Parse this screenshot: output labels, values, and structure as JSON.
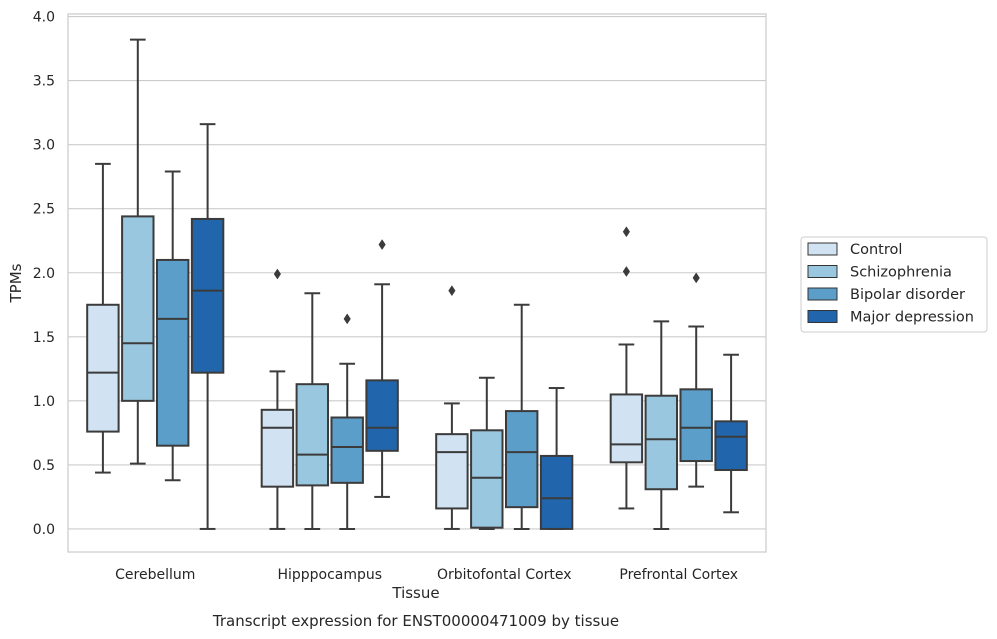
{
  "chart_data": {
    "type": "box",
    "title": "",
    "caption": "Transcript expression for ENST00000471009 by tissue",
    "xlabel": "Tissue",
    "ylabel": "TPMs",
    "ylim": [
      -0.18,
      4.02
    ],
    "yticks": [
      "0.0",
      "0.5",
      "1.0",
      "1.5",
      "2.0",
      "2.5",
      "3.0",
      "3.5",
      "4.0"
    ],
    "grid": "horizontal",
    "legend_position": "right",
    "categories": [
      "Cerebellum",
      "Hipppocampus",
      "Orbitofontal Cortex",
      "Prefrontal Cortex"
    ],
    "series": [
      {
        "name": "Control",
        "color": "#d1e2f2",
        "boxes": [
          {
            "min": 0.44,
            "q1": 0.76,
            "median": 1.22,
            "q3": 1.75,
            "max": 2.85,
            "outliers": []
          },
          {
            "min": 0.0,
            "q1": 0.33,
            "median": 0.79,
            "q3": 0.93,
            "max": 1.23,
            "outliers": [
              1.99
            ]
          },
          {
            "min": 0.0,
            "q1": 0.16,
            "median": 0.6,
            "q3": 0.74,
            "max": 0.98,
            "outliers": [
              1.86
            ]
          },
          {
            "min": 0.16,
            "q1": 0.52,
            "median": 0.66,
            "q3": 1.05,
            "max": 1.44,
            "outliers": [
              2.01,
              2.32
            ]
          }
        ]
      },
      {
        "name": "Schizophrenia",
        "color": "#9ac7e0",
        "boxes": [
          {
            "min": 0.51,
            "q1": 1.0,
            "median": 1.45,
            "q3": 2.44,
            "max": 3.82,
            "outliers": []
          },
          {
            "min": 0.0,
            "q1": 0.34,
            "median": 0.58,
            "q3": 1.13,
            "max": 1.84,
            "outliers": []
          },
          {
            "min": 0.0,
            "q1": 0.01,
            "median": 0.4,
            "q3": 0.77,
            "max": 1.18,
            "outliers": []
          },
          {
            "min": 0.0,
            "q1": 0.31,
            "median": 0.7,
            "q3": 1.04,
            "max": 1.62,
            "outliers": []
          }
        ]
      },
      {
        "name": "Bipolar disorder",
        "color": "#5b9ec9",
        "boxes": [
          {
            "min": 0.38,
            "q1": 0.65,
            "median": 1.64,
            "q3": 2.1,
            "max": 2.79,
            "outliers": []
          },
          {
            "min": 0.0,
            "q1": 0.36,
            "median": 0.64,
            "q3": 0.87,
            "max": 1.29,
            "outliers": [
              1.64
            ]
          },
          {
            "min": 0.0,
            "q1": 0.17,
            "median": 0.6,
            "q3": 0.92,
            "max": 1.75,
            "outliers": []
          },
          {
            "min": 0.33,
            "q1": 0.53,
            "median": 0.79,
            "q3": 1.09,
            "max": 1.58,
            "outliers": [
              1.96
            ]
          }
        ]
      },
      {
        "name": "Major depression",
        "color": "#2166ac",
        "boxes": [
          {
            "min": 0.0,
            "q1": 1.22,
            "median": 1.86,
            "q3": 2.42,
            "max": 3.16,
            "outliers": []
          },
          {
            "min": 0.25,
            "q1": 0.61,
            "median": 0.79,
            "q3": 1.16,
            "max": 1.91,
            "outliers": [
              2.22
            ]
          },
          {
            "min": 0.0,
            "q1": 0.0,
            "median": 0.24,
            "q3": 0.57,
            "max": 1.1,
            "outliers": []
          },
          {
            "min": 0.13,
            "q1": 0.46,
            "median": 0.72,
            "q3": 0.84,
            "max": 1.36,
            "outliers": []
          }
        ]
      }
    ]
  }
}
